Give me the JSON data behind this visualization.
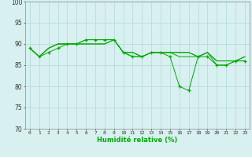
{
  "x_labels": [
    0,
    1,
    2,
    3,
    4,
    5,
    6,
    7,
    8,
    9,
    10,
    11,
    12,
    13,
    14,
    15,
    16,
    17,
    18,
    19,
    20,
    21,
    22,
    23
  ],
  "line1": [
    89,
    87,
    88,
    89,
    90,
    90,
    91,
    91,
    91,
    91,
    88,
    87,
    87,
    88,
    88,
    87,
    80,
    79,
    87,
    87,
    85,
    85,
    86,
    86
  ],
  "line2": [
    89,
    87,
    89,
    90,
    90,
    90,
    91,
    91,
    91,
    91,
    88,
    87,
    87,
    88,
    88,
    88,
    87,
    87,
    87,
    88,
    85,
    85,
    86,
    86
  ],
  "line3": [
    89,
    87,
    89,
    90,
    90,
    90,
    90,
    90,
    90,
    91,
    88,
    88,
    87,
    88,
    88,
    88,
    88,
    88,
    87,
    88,
    86,
    86,
    86,
    87
  ],
  "line4": [
    89,
    87,
    89,
    90,
    90,
    90,
    90,
    90,
    90,
    91,
    88,
    88,
    87,
    88,
    88,
    88,
    88,
    88,
    87,
    88,
    86,
    86,
    86,
    87
  ],
  "line_color": "#00aa00",
  "marker_color": "#00aa00",
  "bg_color": "#d8f0f0",
  "grid_color": "#b0d8d8",
  "xlabel": "Humidité relative (%)",
  "ylim": [
    70,
    100
  ],
  "yticks": [
    70,
    75,
    80,
    85,
    90,
    95,
    100
  ],
  "figsize": [
    3.2,
    2.0
  ],
  "dpi": 100
}
